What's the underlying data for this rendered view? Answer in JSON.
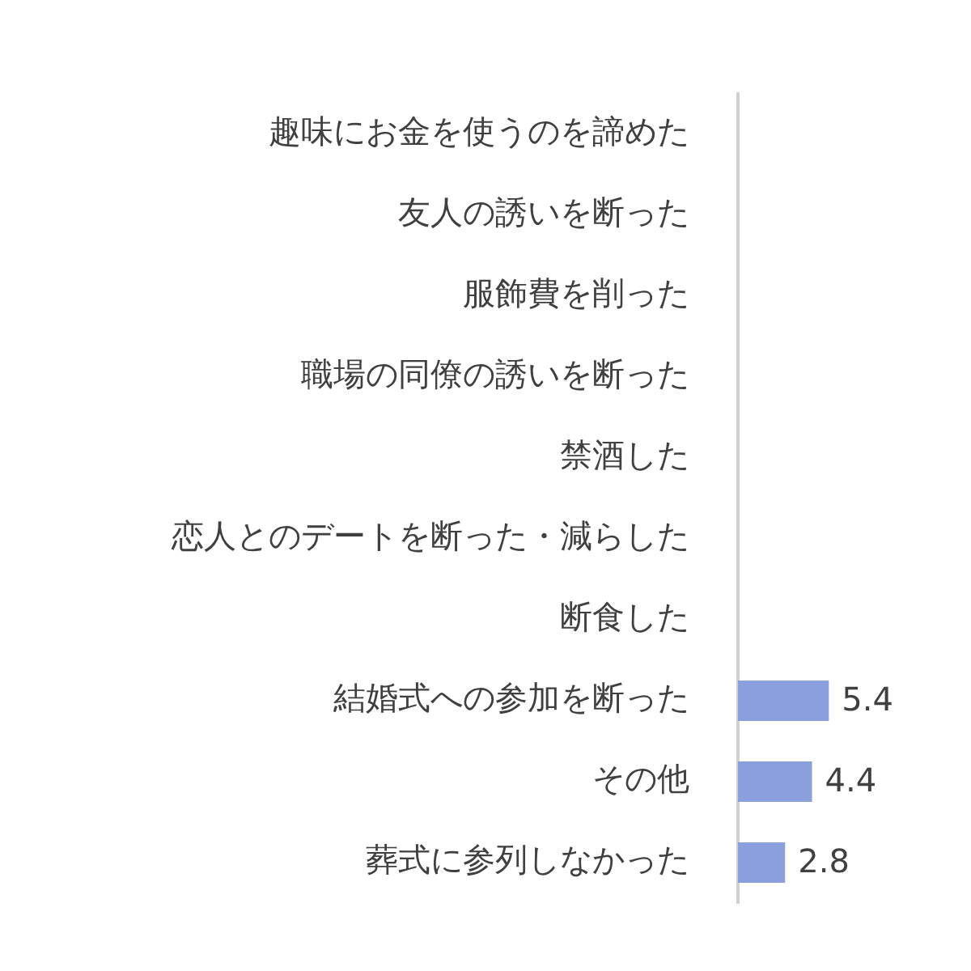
{
  "chart_data": {
    "type": "bar",
    "orientation": "horizontal",
    "categories": [
      "趣味にお金を使うのを諦めた",
      "友人の誘いを断った",
      "服飾費を削った",
      "職場の同僚の誘いを断った",
      "禁酒した",
      "恋人とのデートを断った・減らした",
      "断食した",
      "結婚式への参加を断った",
      "その他",
      "葬式に参列しなかった"
    ],
    "values": [
      null,
      null,
      null,
      null,
      null,
      null,
      null,
      5.4,
      4.4,
      2.8
    ],
    "value_labels": [
      null,
      null,
      null,
      null,
      null,
      null,
      null,
      "5.4",
      "4.4",
      "2.8"
    ],
    "color": "#8a9fdc",
    "tick_labels": "y",
    "grid": false
  }
}
